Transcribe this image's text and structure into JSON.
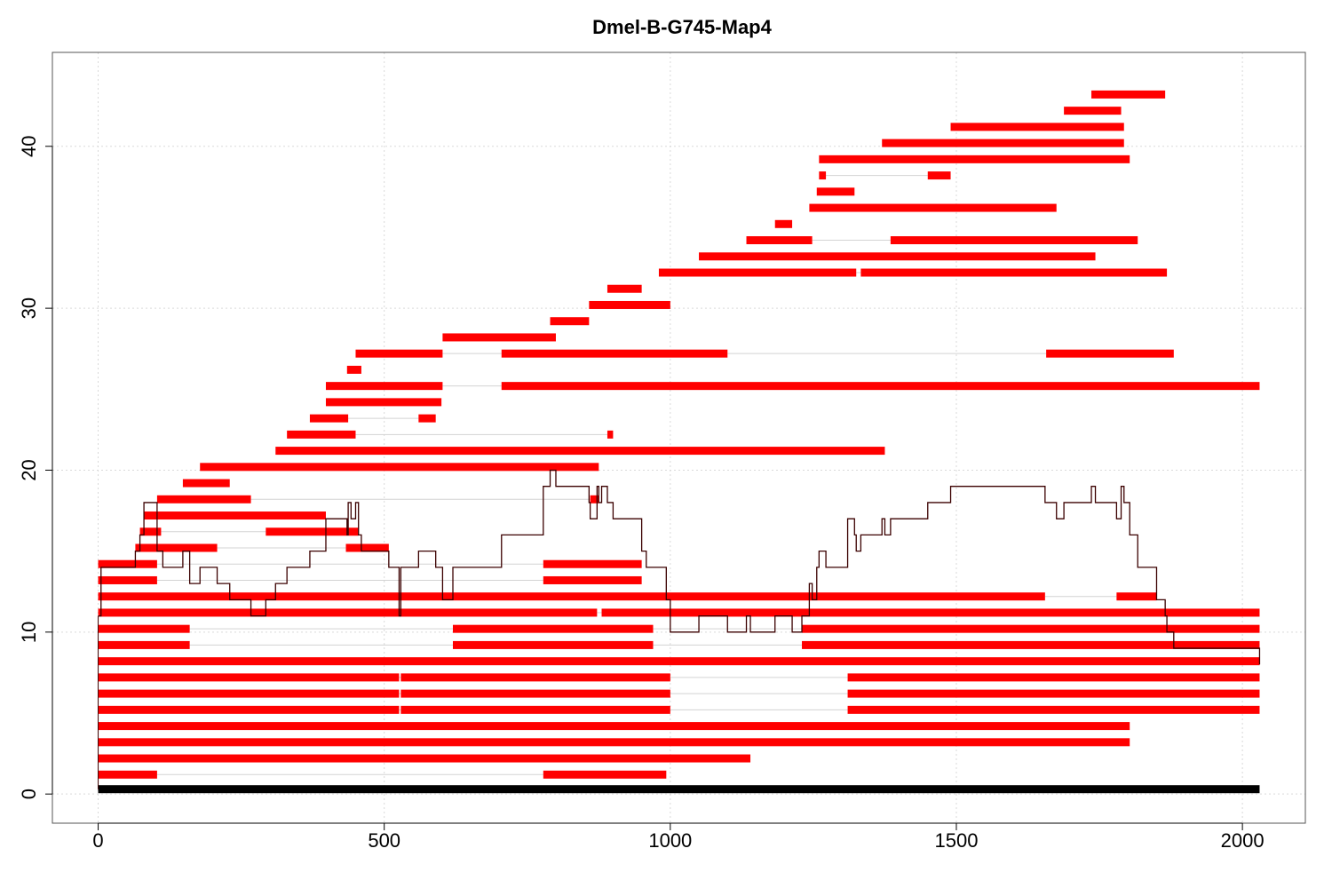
{
  "chart_data": {
    "type": "segment-map",
    "title": "Dmel-B-G745-Map4",
    "xlabel": "",
    "ylabel": "",
    "xlim": [
      -80,
      2110
    ],
    "ylim": [
      -1.8,
      45.8
    ],
    "xticks": [
      0,
      500,
      1000,
      1500,
      2000
    ],
    "yticks": [
      0,
      10,
      20,
      30,
      40
    ],
    "grid": true,
    "colors": {
      "segment": "#ff0000",
      "reference": "#000000",
      "connector": "#d3d3d3",
      "coverage": "#3b0000",
      "grid": "#d9d9d9"
    },
    "reference_bar": {
      "y": 0.3,
      "start": 0,
      "end": 2030
    },
    "reads": [
      {
        "y": 1.2,
        "segments": [
          [
            0,
            103
          ],
          [
            778,
            993
          ]
        ]
      },
      {
        "y": 2.2,
        "segments": [
          [
            0,
            1140
          ]
        ]
      },
      {
        "y": 3.2,
        "segments": [
          [
            0,
            1803
          ]
        ]
      },
      {
        "y": 4.2,
        "segments": [
          [
            0,
            1803
          ]
        ]
      },
      {
        "y": 5.2,
        "segments": [
          [
            0,
            526
          ],
          [
            529,
            1000
          ],
          [
            1310,
            2030
          ]
        ]
      },
      {
        "y": 6.2,
        "segments": [
          [
            0,
            526
          ],
          [
            529,
            1000
          ],
          [
            1310,
            2030
          ]
        ]
      },
      {
        "y": 7.2,
        "segments": [
          [
            0,
            526
          ],
          [
            529,
            1000
          ],
          [
            1310,
            2030
          ]
        ]
      },
      {
        "y": 8.2,
        "segments": [
          [
            0,
            2030
          ]
        ]
      },
      {
        "y": 9.2,
        "segments": [
          [
            0,
            160
          ],
          [
            620,
            970
          ],
          [
            1230,
            2030
          ]
        ]
      },
      {
        "y": 10.2,
        "segments": [
          [
            0,
            160
          ],
          [
            620,
            970
          ],
          [
            1230,
            2030
          ]
        ]
      },
      {
        "y": 11.2,
        "segments": [
          [
            0,
            872
          ],
          [
            880,
            2030
          ]
        ]
      },
      {
        "y": 12.2,
        "segments": [
          [
            0,
            1655
          ],
          [
            1780,
            1850
          ]
        ]
      },
      {
        "y": 13.2,
        "segments": [
          [
            0,
            103
          ],
          [
            778,
            950
          ]
        ]
      },
      {
        "y": 14.2,
        "segments": [
          [
            0,
            103
          ],
          [
            778,
            950
          ]
        ]
      },
      {
        "y": 15.2,
        "segments": [
          [
            65,
            208
          ],
          [
            433,
            508
          ]
        ]
      },
      {
        "y": 16.2,
        "segments": [
          [
            73,
            110
          ],
          [
            293,
            455
          ]
        ]
      },
      {
        "y": 17.2,
        "segments": [
          [
            80,
            398
          ]
        ]
      },
      {
        "y": 18.2,
        "segments": [
          [
            103,
            267
          ],
          [
            860,
            875
          ]
        ]
      },
      {
        "y": 19.2,
        "segments": [
          [
            148,
            230
          ]
        ]
      },
      {
        "y": 20.2,
        "segments": [
          [
            178,
            875
          ]
        ]
      },
      {
        "y": 21.2,
        "segments": [
          [
            310,
            1375
          ]
        ]
      },
      {
        "y": 22.2,
        "segments": [
          [
            330,
            450
          ],
          [
            890,
            900
          ]
        ]
      },
      {
        "y": 23.2,
        "segments": [
          [
            370,
            437
          ],
          [
            560,
            590
          ]
        ]
      },
      {
        "y": 24.2,
        "segments": [
          [
            398,
            600
          ]
        ]
      },
      {
        "y": 25.2,
        "segments": [
          [
            398,
            602
          ],
          [
            705,
            2030
          ]
        ]
      },
      {
        "y": 26.2,
        "segments": [
          [
            435,
            460
          ]
        ]
      },
      {
        "y": 27.2,
        "segments": [
          [
            450,
            602
          ],
          [
            705,
            1100
          ],
          [
            1657,
            1880
          ]
        ]
      },
      {
        "y": 28.2,
        "segments": [
          [
            602,
            800
          ]
        ]
      },
      {
        "y": 29.2,
        "segments": [
          [
            790,
            858
          ]
        ]
      },
      {
        "y": 30.2,
        "segments": [
          [
            858,
            1000
          ]
        ]
      },
      {
        "y": 31.2,
        "segments": [
          [
            890,
            950
          ]
        ]
      },
      {
        "y": 32.2,
        "segments": [
          [
            980,
            1325
          ],
          [
            1333,
            1868
          ]
        ]
      },
      {
        "y": 33.2,
        "segments": [
          [
            1050,
            1743
          ]
        ]
      },
      {
        "y": 34.2,
        "segments": [
          [
            1133,
            1248
          ],
          [
            1385,
            1817
          ]
        ]
      },
      {
        "y": 35.2,
        "segments": [
          [
            1183,
            1213
          ]
        ]
      },
      {
        "y": 36.2,
        "segments": [
          [
            1243,
            1675
          ]
        ]
      },
      {
        "y": 37.2,
        "segments": [
          [
            1256,
            1322
          ]
        ]
      },
      {
        "y": 38.2,
        "segments": [
          [
            1260,
            1272
          ],
          [
            1450,
            1490
          ]
        ]
      },
      {
        "y": 39.2,
        "segments": [
          [
            1260,
            1803
          ]
        ]
      },
      {
        "y": 40.2,
        "segments": [
          [
            1370,
            1793
          ]
        ]
      },
      {
        "y": 41.2,
        "segments": [
          [
            1490,
            1793
          ]
        ]
      },
      {
        "y": 42.2,
        "segments": [
          [
            1688,
            1788
          ]
        ]
      },
      {
        "y": 43.2,
        "segments": [
          [
            1736,
            1865
          ]
        ]
      }
    ],
    "coverage": {
      "x": [
        0,
        5,
        65,
        73,
        80,
        103,
        113,
        148,
        160,
        178,
        208,
        230,
        267,
        293,
        310,
        330,
        370,
        398,
        435,
        437,
        442,
        450,
        455,
        460,
        508,
        526,
        529,
        560,
        590,
        602,
        620,
        705,
        778,
        790,
        800,
        858,
        860,
        872,
        875,
        880,
        890,
        900,
        950,
        958,
        970,
        993,
        1000,
        1050,
        1100,
        1133,
        1140,
        1183,
        1213,
        1230,
        1243,
        1248,
        1256,
        1260,
        1272,
        1310,
        1322,
        1325,
        1333,
        1370,
        1375,
        1385,
        1450,
        1490,
        1655,
        1675,
        1688,
        1736,
        1743,
        1780,
        1788,
        1793,
        1803,
        1817,
        1850,
        1865,
        1868,
        1880,
        2030
      ],
      "y": [
        11,
        14,
        15,
        16,
        18,
        15,
        14,
        15,
        13,
        14,
        13,
        12,
        11,
        12,
        13,
        14,
        15,
        17,
        16,
        18,
        17,
        18,
        16,
        15,
        14,
        11,
        14,
        15,
        14,
        12,
        14,
        16,
        19,
        20,
        19,
        18,
        17,
        19,
        18,
        19,
        18,
        17,
        15,
        14,
        14,
        12,
        10,
        11,
        10,
        11,
        10,
        11,
        10,
        11,
        13,
        12,
        14,
        15,
        14,
        17,
        16,
        15,
        16,
        17,
        16,
        17,
        18,
        19,
        18,
        17,
        18,
        19,
        18,
        17,
        19,
        18,
        16,
        14,
        12,
        11,
        10,
        9,
        8
      ]
    }
  }
}
